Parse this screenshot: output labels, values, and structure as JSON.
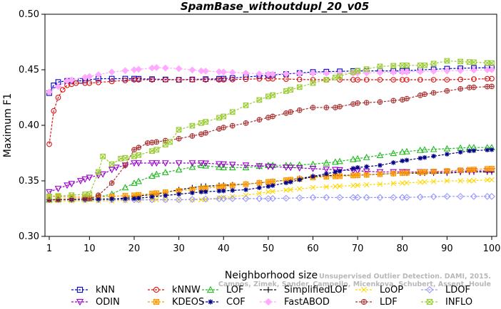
{
  "chart_data": {
    "type": "line",
    "title": "SpamBase_withoutdupl_20_v05",
    "xlabel": "Neighborhood size",
    "ylabel": "Maximum F1",
    "xlim": [
      1,
      100
    ],
    "ylim": [
      0.3,
      0.5
    ],
    "x_ticks": [
      1,
      10,
      20,
      30,
      40,
      50,
      60,
      70,
      80,
      90,
      100
    ],
    "y_ticks": [
      "0.30",
      "0.35",
      "0.40",
      "0.45",
      "0.50"
    ],
    "grid": false,
    "legend_position": "bottom",
    "watermark": [
      "Unsupervised Outlier Detection. DAMI, 2015.",
      "Campos, Zimek, Sander, Campello, Micenkova, Schubert, Assent, Houle"
    ],
    "series": [
      {
        "name": "kNN",
        "color": "#0000cc",
        "marker": "square",
        "points": [
          [
            1,
            0.429
          ],
          [
            2,
            0.436
          ],
          [
            3,
            0.439
          ],
          [
            5,
            0.44
          ],
          [
            8,
            0.44
          ],
          [
            12,
            0.442
          ],
          [
            20,
            0.442
          ],
          [
            30,
            0.441
          ],
          [
            40,
            0.442
          ],
          [
            50,
            0.445
          ],
          [
            60,
            0.448
          ],
          [
            70,
            0.449
          ],
          [
            80,
            0.449
          ],
          [
            90,
            0.451
          ],
          [
            100,
            0.452
          ]
        ]
      },
      {
        "name": "kNNW",
        "color": "#dd1111",
        "marker": "circle",
        "points": [
          [
            1,
            0.383
          ],
          [
            2,
            0.413
          ],
          [
            3,
            0.425
          ],
          [
            4,
            0.432
          ],
          [
            5,
            0.436
          ],
          [
            7,
            0.438
          ],
          [
            10,
            0.438
          ],
          [
            20,
            0.441
          ],
          [
            30,
            0.441
          ],
          [
            40,
            0.441
          ],
          [
            50,
            0.442
          ],
          [
            60,
            0.441
          ],
          [
            70,
            0.441
          ],
          [
            80,
            0.441
          ],
          [
            90,
            0.441
          ],
          [
            100,
            0.442
          ]
        ]
      },
      {
        "name": "LOF",
        "color": "#22bb22",
        "marker": "triangle-up",
        "points": [
          [
            1,
            0.333
          ],
          [
            10,
            0.334
          ],
          [
            15,
            0.338
          ],
          [
            20,
            0.348
          ],
          [
            25,
            0.356
          ],
          [
            30,
            0.36
          ],
          [
            35,
            0.364
          ],
          [
            40,
            0.362
          ],
          [
            45,
            0.362
          ],
          [
            50,
            0.364
          ],
          [
            55,
            0.364
          ],
          [
            60,
            0.365
          ],
          [
            65,
            0.367
          ],
          [
            70,
            0.37
          ],
          [
            75,
            0.373
          ],
          [
            80,
            0.376
          ],
          [
            85,
            0.378
          ],
          [
            90,
            0.379
          ],
          [
            95,
            0.38
          ],
          [
            100,
            0.38
          ]
        ]
      },
      {
        "name": "SimplifiedLOF",
        "color": "#000000",
        "marker": "plus",
        "points": [
          [
            1,
            0.333
          ],
          [
            15,
            0.333
          ],
          [
            20,
            0.336
          ],
          [
            25,
            0.338
          ],
          [
            30,
            0.342
          ],
          [
            35,
            0.345
          ],
          [
            40,
            0.346
          ],
          [
            45,
            0.347
          ],
          [
            50,
            0.349
          ],
          [
            55,
            0.351
          ],
          [
            60,
            0.354
          ],
          [
            65,
            0.355
          ],
          [
            70,
            0.355
          ],
          [
            75,
            0.356
          ],
          [
            80,
            0.357
          ],
          [
            85,
            0.357
          ],
          [
            90,
            0.357
          ],
          [
            95,
            0.358
          ],
          [
            100,
            0.358
          ]
        ]
      },
      {
        "name": "LoOP",
        "color": "#ffd700",
        "marker": "cross",
        "points": [
          [
            1,
            0.332
          ],
          [
            15,
            0.332
          ],
          [
            25,
            0.333
          ],
          [
            35,
            0.333
          ],
          [
            40,
            0.335
          ],
          [
            45,
            0.337
          ],
          [
            50,
            0.34
          ],
          [
            55,
            0.342
          ],
          [
            60,
            0.344
          ],
          [
            65,
            0.345
          ],
          [
            70,
            0.346
          ],
          [
            75,
            0.347
          ],
          [
            80,
            0.348
          ],
          [
            85,
            0.349
          ],
          [
            90,
            0.35
          ],
          [
            95,
            0.35
          ],
          [
            100,
            0.351
          ]
        ]
      },
      {
        "name": "LDOF",
        "color": "#9999ff",
        "marker": "diamond",
        "points": [
          [
            1,
            0.333
          ],
          [
            20,
            0.333
          ],
          [
            30,
            0.333
          ],
          [
            40,
            0.334
          ],
          [
            50,
            0.334
          ],
          [
            60,
            0.335
          ],
          [
            70,
            0.335
          ],
          [
            80,
            0.335
          ],
          [
            90,
            0.336
          ],
          [
            100,
            0.336
          ]
        ]
      },
      {
        "name": "ODIN",
        "color": "#9900cc",
        "marker": "triangle-down",
        "points": [
          [
            1,
            0.34
          ],
          [
            3,
            0.343
          ],
          [
            5,
            0.346
          ],
          [
            8,
            0.35
          ],
          [
            10,
            0.353
          ],
          [
            13,
            0.356
          ],
          [
            16,
            0.362
          ],
          [
            20,
            0.366
          ],
          [
            25,
            0.366
          ],
          [
            30,
            0.366
          ],
          [
            35,
            0.366
          ],
          [
            40,
            0.365
          ],
          [
            45,
            0.364
          ],
          [
            50,
            0.363
          ],
          [
            55,
            0.362
          ],
          [
            60,
            0.361
          ],
          [
            65,
            0.36
          ],
          [
            70,
            0.359
          ],
          [
            75,
            0.358
          ],
          [
            80,
            0.358
          ],
          [
            85,
            0.358
          ],
          [
            90,
            0.358
          ],
          [
            95,
            0.359
          ],
          [
            100,
            0.359
          ]
        ]
      },
      {
        "name": "KDEOS",
        "color": "#ff9900",
        "marker": "asterisk-box",
        "points": [
          [
            1,
            0.336
          ],
          [
            10,
            0.335
          ],
          [
            20,
            0.337
          ],
          [
            25,
            0.339
          ],
          [
            30,
            0.341
          ],
          [
            35,
            0.343
          ],
          [
            40,
            0.345
          ],
          [
            45,
            0.347
          ],
          [
            50,
            0.349
          ],
          [
            55,
            0.351
          ],
          [
            60,
            0.353
          ],
          [
            65,
            0.354
          ],
          [
            70,
            0.355
          ],
          [
            75,
            0.356
          ],
          [
            80,
            0.357
          ],
          [
            85,
            0.358
          ],
          [
            90,
            0.359
          ],
          [
            95,
            0.36
          ],
          [
            100,
            0.361
          ]
        ]
      },
      {
        "name": "COF",
        "color": "#000088",
        "marker": "star",
        "points": [
          [
            1,
            0.333
          ],
          [
            20,
            0.334
          ],
          [
            30,
            0.338
          ],
          [
            35,
            0.34
          ],
          [
            40,
            0.341
          ],
          [
            45,
            0.342
          ],
          [
            50,
            0.345
          ],
          [
            55,
            0.349
          ],
          [
            60,
            0.354
          ],
          [
            65,
            0.358
          ],
          [
            70,
            0.362
          ],
          [
            75,
            0.364
          ],
          [
            80,
            0.368
          ],
          [
            85,
            0.371
          ],
          [
            90,
            0.374
          ],
          [
            95,
            0.377
          ],
          [
            100,
            0.378
          ]
        ]
      },
      {
        "name": "FastABOD",
        "color": "#ffaaff",
        "marker": "diamond-filled",
        "points": [
          [
            1,
            0.43
          ],
          [
            5,
            0.44
          ],
          [
            10,
            0.444
          ],
          [
            15,
            0.448
          ],
          [
            20,
            0.45
          ],
          [
            25,
            0.452
          ],
          [
            30,
            0.451
          ],
          [
            35,
            0.449
          ],
          [
            40,
            0.448
          ],
          [
            45,
            0.447
          ],
          [
            50,
            0.446
          ],
          [
            60,
            0.447
          ],
          [
            70,
            0.447
          ],
          [
            80,
            0.448
          ],
          [
            90,
            0.449
          ],
          [
            100,
            0.45
          ]
        ]
      },
      {
        "name": "LDF",
        "color": "#aa3333",
        "marker": "circle-plus",
        "points": [
          [
            1,
            0.333
          ],
          [
            10,
            0.334
          ],
          [
            12,
            0.337
          ],
          [
            15,
            0.348
          ],
          [
            18,
            0.364
          ],
          [
            20,
            0.378
          ],
          [
            23,
            0.384
          ],
          [
            25,
            0.385
          ],
          [
            30,
            0.388
          ],
          [
            35,
            0.392
          ],
          [
            40,
            0.398
          ],
          [
            45,
            0.402
          ],
          [
            50,
            0.407
          ],
          [
            55,
            0.412
          ],
          [
            60,
            0.416
          ],
          [
            65,
            0.416
          ],
          [
            70,
            0.42
          ],
          [
            75,
            0.421
          ],
          [
            80,
            0.423
          ],
          [
            85,
            0.428
          ],
          [
            90,
            0.431
          ],
          [
            95,
            0.434
          ],
          [
            100,
            0.435
          ]
        ]
      },
      {
        "name": "INFLO",
        "color": "#99cc33",
        "marker": "x-box",
        "points": [
          [
            1,
            0.336
          ],
          [
            10,
            0.338
          ],
          [
            12,
            0.358
          ],
          [
            13,
            0.372
          ],
          [
            15,
            0.365
          ],
          [
            17,
            0.37
          ],
          [
            20,
            0.372
          ],
          [
            25,
            0.378
          ],
          [
            28,
            0.385
          ],
          [
            30,
            0.396
          ],
          [
            35,
            0.402
          ],
          [
            40,
            0.408
          ],
          [
            45,
            0.418
          ],
          [
            50,
            0.426
          ],
          [
            55,
            0.432
          ],
          [
            60,
            0.438
          ],
          [
            65,
            0.443
          ],
          [
            70,
            0.449
          ],
          [
            75,
            0.453
          ],
          [
            80,
            0.454
          ],
          [
            85,
            0.454
          ],
          [
            90,
            0.458
          ],
          [
            95,
            0.457
          ],
          [
            100,
            0.456
          ]
        ]
      }
    ]
  }
}
